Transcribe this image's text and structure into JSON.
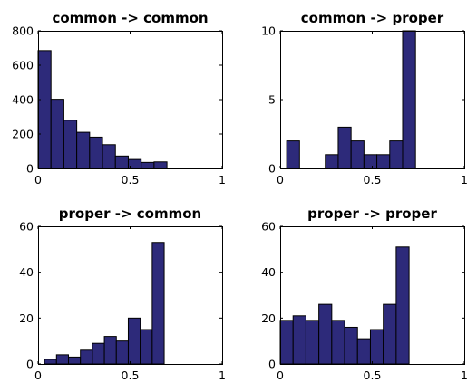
{
  "chart_data": [
    {
      "type": "bar",
      "title": "common -> common",
      "xlim": [
        0,
        1
      ],
      "ylim": [
        0,
        800
      ],
      "xticks": [
        0,
        0.5,
        1
      ],
      "xtick_labels": [
        "0",
        "0.5",
        "1"
      ],
      "yticks": [
        0,
        200,
        400,
        600,
        800
      ],
      "ytick_labels": [
        "0",
        "200",
        "400",
        "600",
        "800"
      ],
      "bin_edges": [
        0,
        0.07,
        0.14,
        0.21,
        0.28,
        0.35,
        0.42,
        0.49,
        0.56,
        0.63,
        0.7
      ],
      "values": [
        685,
        402,
        280,
        210,
        182,
        138,
        72,
        52,
        35,
        38
      ],
      "bar_color": "#2d2a7a",
      "grid": false
    },
    {
      "type": "bar",
      "title": "common -> proper",
      "xlim": [
        0,
        1
      ],
      "ylim": [
        0,
        10
      ],
      "xticks": [
        0,
        0.5,
        1
      ],
      "xtick_labels": [
        "0",
        "0.5",
        "1"
      ],
      "yticks": [
        0,
        5,
        10
      ],
      "ytick_labels": [
        "0",
        "5",
        "10"
      ],
      "bin_edges": [
        0.035,
        0.105,
        0.175,
        0.245,
        0.315,
        0.385,
        0.455,
        0.525,
        0.595,
        0.665,
        0.735
      ],
      "values": [
        2,
        0,
        0,
        1,
        3,
        2,
        1,
        1,
        2,
        10
      ],
      "bar_color": "#2d2a7a",
      "grid": false
    },
    {
      "type": "bar",
      "title": "proper -> common",
      "xlim": [
        0,
        1
      ],
      "ylim": [
        0,
        60
      ],
      "xticks": [
        0,
        0.5,
        1
      ],
      "xtick_labels": [
        "0",
        "0.5",
        "1"
      ],
      "yticks": [
        0,
        20,
        40,
        60
      ],
      "ytick_labels": [
        "0",
        "20",
        "40",
        "60"
      ],
      "bin_edges": [
        0.035,
        0.1,
        0.165,
        0.23,
        0.295,
        0.36,
        0.425,
        0.49,
        0.555,
        0.62,
        0.685
      ],
      "values": [
        2,
        4,
        3,
        6,
        9,
        12,
        10,
        20,
        15,
        53
      ],
      "bar_color": "#2d2a7a",
      "grid": false
    },
    {
      "type": "bar",
      "title": "proper -> proper",
      "xlim": [
        0,
        1
      ],
      "ylim": [
        0,
        60
      ],
      "xticks": [
        0,
        0.5,
        1
      ],
      "xtick_labels": [
        "0",
        "0.5",
        "1"
      ],
      "yticks": [
        0,
        20,
        40,
        60
      ],
      "ytick_labels": [
        "0",
        "20",
        "40",
        "60"
      ],
      "bin_edges": [
        0,
        0.07,
        0.14,
        0.21,
        0.28,
        0.35,
        0.42,
        0.49,
        0.56,
        0.63,
        0.7
      ],
      "values": [
        19,
        21,
        19,
        26,
        19,
        16,
        11,
        15,
        26,
        51
      ],
      "bar_color": "#2d2a7a",
      "grid": false
    }
  ]
}
